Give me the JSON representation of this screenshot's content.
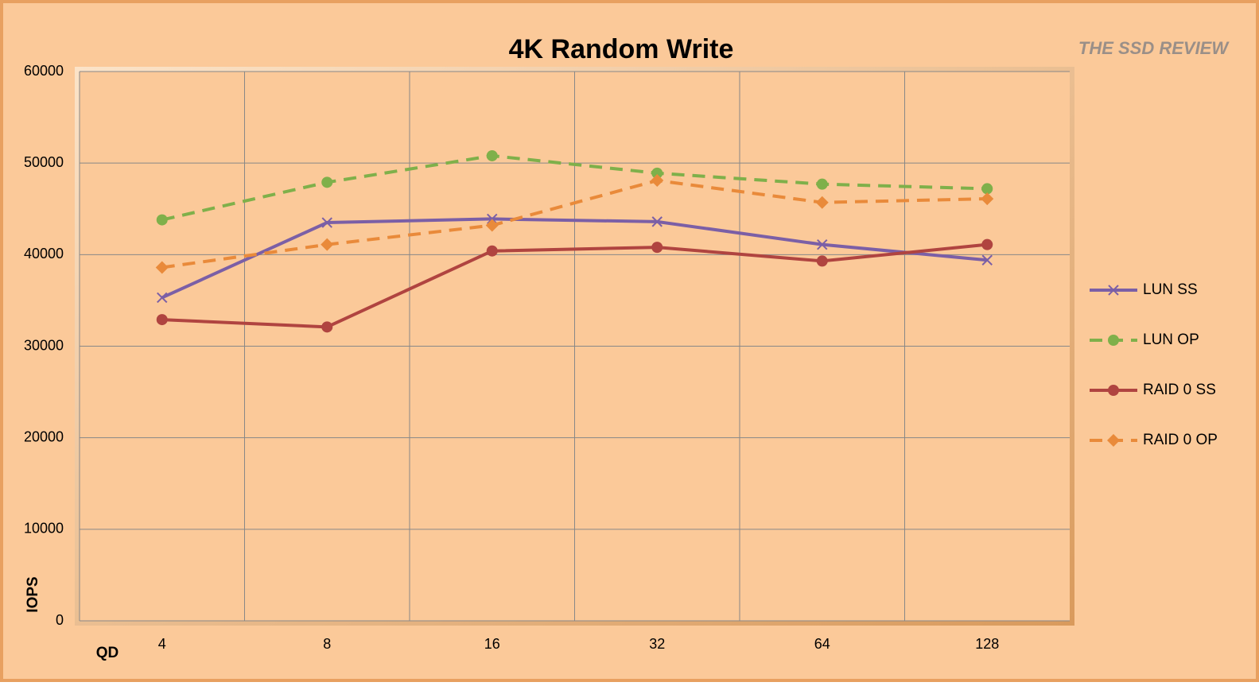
{
  "chart_data": {
    "type": "line",
    "title": "4K Random Write",
    "watermark": "THE SSD REVIEW",
    "x_label": "QD",
    "y_label": "IOPS",
    "categories": [
      "4",
      "8",
      "16",
      "32",
      "64",
      "128"
    ],
    "ylim": [
      0,
      60000
    ],
    "yticks": [
      0,
      10000,
      20000,
      30000,
      40000,
      50000,
      60000
    ],
    "grid": true,
    "legend": "right",
    "series": [
      {
        "name": "LUN SS",
        "color": "#7b5fa6",
        "marker": "x",
        "dashed": false,
        "values": [
          35300,
          43500,
          43900,
          43600,
          41100,
          39400
        ]
      },
      {
        "name": "LUN OP",
        "color": "#7fb04a",
        "marker": "circle",
        "dashed": true,
        "values": [
          43800,
          47900,
          50800,
          48900,
          47700,
          47200
        ]
      },
      {
        "name": "RAID 0 SS",
        "color": "#b04440",
        "marker": "circle",
        "dashed": false,
        "values": [
          32900,
          32100,
          40400,
          40800,
          39300,
          41100
        ]
      },
      {
        "name": "RAID 0 OP",
        "color": "#e98a3a",
        "marker": "diamond",
        "dashed": true,
        "values": [
          38600,
          41100,
          43200,
          48100,
          45700,
          46100
        ]
      }
    ]
  }
}
